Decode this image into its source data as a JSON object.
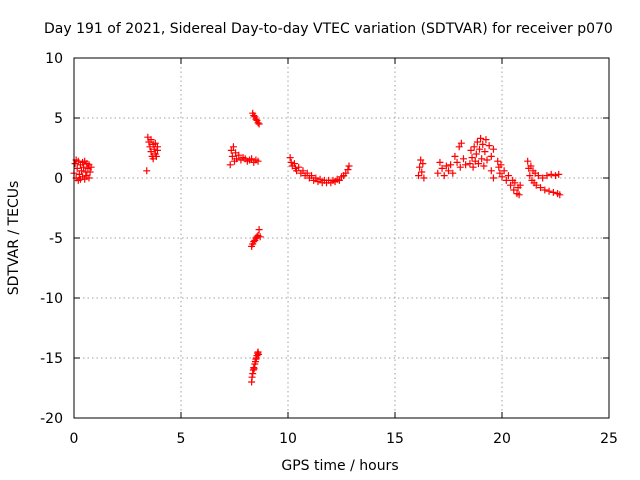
{
  "chart_data": {
    "type": "scatter",
    "title": "Day 191 of 2021, Sidereal Day-to-day VTEC variation (SDTVAR) for receiver p070",
    "xlabel": "GPS time / hours",
    "ylabel": "SDTVAR / TECUs",
    "xlim": [
      0,
      25
    ],
    "ylim": [
      -20,
      10
    ],
    "xticks": [
      0,
      5,
      10,
      15,
      20,
      25
    ],
    "yticks": [
      -20,
      -15,
      -10,
      -5,
      0,
      5,
      10
    ],
    "xtick_labels": [
      "0",
      "5",
      "10",
      "15",
      "20",
      "25"
    ],
    "ytick_labels": [
      "-20",
      "-15",
      "-10",
      "-5",
      "0",
      "5",
      "10"
    ],
    "grid": true,
    "marker": "+",
    "color": "#ff0000",
    "series": [
      {
        "name": "SDTVAR",
        "points": [
          [
            0.0,
            0.4
          ],
          [
            0.05,
            1.2
          ],
          [
            0.1,
            0.0
          ],
          [
            0.1,
            1.5
          ],
          [
            0.15,
            0.8
          ],
          [
            0.2,
            -0.2
          ],
          [
            0.2,
            1.4
          ],
          [
            0.25,
            0.3
          ],
          [
            0.3,
            1.1
          ],
          [
            0.3,
            -0.1
          ],
          [
            0.35,
            0.6
          ],
          [
            0.4,
            1.3
          ],
          [
            0.4,
            0.1
          ],
          [
            0.45,
            0.9
          ],
          [
            0.5,
            -0.1
          ],
          [
            0.5,
            1.4
          ],
          [
            0.55,
            0.5
          ],
          [
            0.6,
            1.2
          ],
          [
            0.6,
            0.2
          ],
          [
            0.65,
            0.8
          ],
          [
            0.7,
            1.1
          ],
          [
            0.7,
            0.0
          ],
          [
            0.75,
            0.5
          ],
          [
            0.8,
            0.9
          ],
          [
            3.4,
            0.6
          ],
          [
            3.45,
            3.4
          ],
          [
            3.5,
            3.0
          ],
          [
            3.55,
            2.6
          ],
          [
            3.6,
            2.2
          ],
          [
            3.6,
            3.2
          ],
          [
            3.65,
            1.8
          ],
          [
            3.7,
            2.8
          ],
          [
            3.7,
            1.6
          ],
          [
            3.75,
            2.4
          ],
          [
            3.8,
            2.0
          ],
          [
            3.8,
            2.9
          ],
          [
            3.85,
            1.8
          ],
          [
            3.9,
            2.3
          ],
          [
            3.9,
            2.6
          ],
          [
            7.3,
            1.1
          ],
          [
            7.35,
            2.3
          ],
          [
            7.4,
            1.8
          ],
          [
            7.45,
            2.6
          ],
          [
            7.5,
            1.4
          ],
          [
            7.55,
            2.1
          ],
          [
            7.6,
            1.6
          ],
          [
            7.7,
            1.9
          ],
          [
            7.8,
            1.5
          ],
          [
            7.9,
            1.7
          ],
          [
            8.0,
            1.6
          ],
          [
            8.1,
            1.4
          ],
          [
            8.2,
            1.5
          ],
          [
            8.3,
            1.6
          ],
          [
            8.4,
            1.3
          ],
          [
            8.5,
            1.5
          ],
          [
            8.6,
            1.4
          ],
          [
            8.35,
            5.4
          ],
          [
            8.4,
            5.2
          ],
          [
            8.45,
            5.1
          ],
          [
            8.5,
            4.9
          ],
          [
            8.55,
            4.8
          ],
          [
            8.6,
            4.6
          ],
          [
            8.65,
            4.5
          ],
          [
            8.3,
            -5.7
          ],
          [
            8.35,
            -5.5
          ],
          [
            8.4,
            -5.3
          ],
          [
            8.45,
            -5.2
          ],
          [
            8.5,
            -5.0
          ],
          [
            8.55,
            -4.9
          ],
          [
            8.6,
            -4.8
          ],
          [
            8.65,
            -4.3
          ],
          [
            8.7,
            -4.9
          ],
          [
            8.3,
            -17.0
          ],
          [
            8.32,
            -16.6
          ],
          [
            8.35,
            -16.3
          ],
          [
            8.38,
            -16.0
          ],
          [
            8.4,
            -15.8
          ],
          [
            8.42,
            -15.9
          ],
          [
            8.45,
            -15.5
          ],
          [
            8.48,
            -15.3
          ],
          [
            8.5,
            -15.1
          ],
          [
            8.52,
            -15.0
          ],
          [
            8.55,
            -14.8
          ],
          [
            8.58,
            -14.6
          ],
          [
            8.6,
            -14.5
          ],
          [
            8.62,
            -14.7
          ],
          [
            10.1,
            1.7
          ],
          [
            10.15,
            1.3
          ],
          [
            10.2,
            1.0
          ],
          [
            10.3,
            1.2
          ],
          [
            10.35,
            0.8
          ],
          [
            10.4,
            0.6
          ],
          [
            10.5,
            0.9
          ],
          [
            10.6,
            0.4
          ],
          [
            10.7,
            0.6
          ],
          [
            10.8,
            0.2
          ],
          [
            10.9,
            0.4
          ],
          [
            11.0,
            0.0
          ],
          [
            11.1,
            0.2
          ],
          [
            11.2,
            -0.2
          ],
          [
            11.3,
            0.0
          ],
          [
            11.4,
            -0.3
          ],
          [
            11.5,
            -0.1
          ],
          [
            11.6,
            -0.4
          ],
          [
            11.7,
            -0.2
          ],
          [
            11.8,
            -0.4
          ],
          [
            11.9,
            -0.2
          ],
          [
            12.0,
            -0.4
          ],
          [
            12.1,
            -0.2
          ],
          [
            12.2,
            -0.3
          ],
          [
            12.3,
            -0.1
          ],
          [
            12.4,
            -0.2
          ],
          [
            12.5,
            0.1
          ],
          [
            12.6,
            0.2
          ],
          [
            12.7,
            0.4
          ],
          [
            12.8,
            0.7
          ],
          [
            12.85,
            1.0
          ],
          [
            16.1,
            0.2
          ],
          [
            16.15,
            0.9
          ],
          [
            16.2,
            1.5
          ],
          [
            16.25,
            0.5
          ],
          [
            16.3,
            1.2
          ],
          [
            16.35,
            0.0
          ],
          [
            17.0,
            0.4
          ],
          [
            17.1,
            1.3
          ],
          [
            17.2,
            0.8
          ],
          [
            17.3,
            0.2
          ],
          [
            17.4,
            1.0
          ],
          [
            17.5,
            0.6
          ],
          [
            17.6,
            1.1
          ],
          [
            17.7,
            0.4
          ],
          [
            17.8,
            1.8
          ],
          [
            17.9,
            1.3
          ],
          [
            18.0,
            2.6
          ],
          [
            18.05,
            0.9
          ],
          [
            18.1,
            2.9
          ],
          [
            18.2,
            1.6
          ],
          [
            18.3,
            1.1
          ],
          [
            18.5,
            1.2
          ],
          [
            18.55,
            2.3
          ],
          [
            18.6,
            1.7
          ],
          [
            18.65,
            0.9
          ],
          [
            18.7,
            2.6
          ],
          [
            18.75,
            1.4
          ],
          [
            18.8,
            2.0
          ],
          [
            18.85,
            3.0
          ],
          [
            18.9,
            1.2
          ],
          [
            18.95,
            2.4
          ],
          [
            19.0,
            3.3
          ],
          [
            19.05,
            1.6
          ],
          [
            19.1,
            2.8
          ],
          [
            19.15,
            1.0
          ],
          [
            19.2,
            2.2
          ],
          [
            19.25,
            3.2
          ],
          [
            19.3,
            1.5
          ],
          [
            19.4,
            2.7
          ],
          [
            19.5,
            1.8
          ],
          [
            19.5,
            0.6
          ],
          [
            19.6,
            2.4
          ],
          [
            19.6,
            0.0
          ],
          [
            19.8,
            1.4
          ],
          [
            19.85,
            0.9
          ],
          [
            19.9,
            0.4
          ],
          [
            19.95,
            1.1
          ],
          [
            20.0,
            0.1
          ],
          [
            20.1,
            0.6
          ],
          [
            20.2,
            -0.2
          ],
          [
            20.3,
            0.2
          ],
          [
            20.4,
            -0.6
          ],
          [
            20.5,
            -0.2
          ],
          [
            20.55,
            -1.0
          ],
          [
            20.6,
            -0.4
          ],
          [
            20.7,
            -1.3
          ],
          [
            20.75,
            -0.8
          ],
          [
            20.8,
            -1.4
          ],
          [
            20.85,
            -0.6
          ],
          [
            21.2,
            1.4
          ],
          [
            21.25,
            0.8
          ],
          [
            21.3,
            0.2
          ],
          [
            21.35,
            1.0
          ],
          [
            21.4,
            -0.2
          ],
          [
            21.45,
            0.6
          ],
          [
            21.5,
            -0.4
          ],
          [
            21.55,
            0.4
          ],
          [
            21.6,
            -0.6
          ],
          [
            21.7,
            0.2
          ],
          [
            21.8,
            -0.8
          ],
          [
            21.9,
            0.0
          ],
          [
            22.0,
            -1.0
          ],
          [
            22.1,
            0.2
          ],
          [
            22.2,
            -1.1
          ],
          [
            22.3,
            0.3
          ],
          [
            22.4,
            -1.2
          ],
          [
            22.5,
            0.2
          ],
          [
            22.6,
            -1.3
          ],
          [
            22.65,
            0.3
          ],
          [
            22.7,
            -1.4
          ]
        ]
      }
    ]
  }
}
